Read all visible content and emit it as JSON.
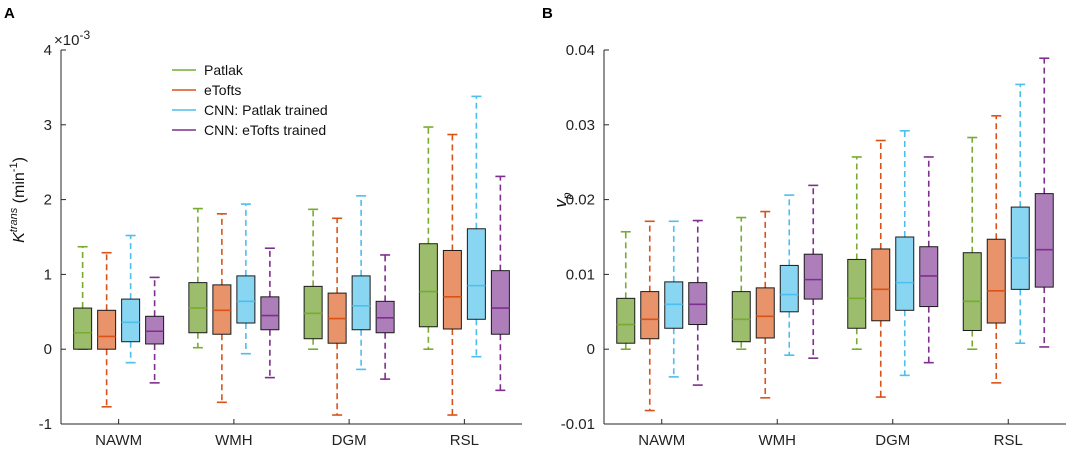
{
  "colors": {
    "patlak_fill": "#9bbd6c",
    "patlak_line": "#77ac30",
    "etofts_fill": "#e8936a",
    "etofts_line": "#d95319",
    "cnn_patlak_fill": "#89d6f3",
    "cnn_patlak_line": "#4dbeee",
    "cnn_etofts_fill": "#ad7eba",
    "cnn_etofts_line": "#7e2f8e",
    "axis": "#262626"
  },
  "chart_data": [
    {
      "type": "box",
      "panel_label": "A",
      "ylabel": {
        "main": "K",
        "sup": "trans",
        "mid": " (min",
        "sup2": "-1",
        "end": ")"
      },
      "exponent": {
        "base": "×10",
        "exp": "-3"
      },
      "ylim": [
        -1,
        4
      ],
      "yticks": [
        -1,
        0,
        1,
        2,
        3,
        4
      ],
      "ytick_labels": [
        "-1",
        "0",
        "1",
        "2",
        "3",
        "4"
      ],
      "categories": [
        "NAWM",
        "WMH",
        "DGM",
        "RSL"
      ],
      "legend": [
        "Patlak",
        "eTofts",
        "CNN: Patlak trained",
        "CNN: eTofts trained"
      ],
      "series": [
        {
          "name": "Patlak",
          "boxes": [
            {
              "whisker_low": 0.0,
              "q1": 0.0,
              "median": 0.22,
              "q3": 0.55,
              "whisker_high": 1.37
            },
            {
              "whisker_low": 0.02,
              "q1": 0.22,
              "median": 0.55,
              "q3": 0.89,
              "whisker_high": 1.88
            },
            {
              "whisker_low": 0.0,
              "q1": 0.14,
              "median": 0.48,
              "q3": 0.84,
              "whisker_high": 1.87
            },
            {
              "whisker_low": 0.0,
              "q1": 0.3,
              "median": 0.77,
              "q3": 1.41,
              "whisker_high": 2.97
            }
          ]
        },
        {
          "name": "eTofts",
          "boxes": [
            {
              "whisker_low": -0.77,
              "q1": 0.0,
              "median": 0.17,
              "q3": 0.52,
              "whisker_high": 1.29
            },
            {
              "whisker_low": -0.71,
              "q1": 0.2,
              "median": 0.52,
              "q3": 0.86,
              "whisker_high": 1.81
            },
            {
              "whisker_low": -0.88,
              "q1": 0.08,
              "median": 0.41,
              "q3": 0.75,
              "whisker_high": 1.75
            },
            {
              "whisker_low": -0.88,
              "q1": 0.27,
              "median": 0.7,
              "q3": 1.32,
              "whisker_high": 2.87
            }
          ]
        },
        {
          "name": "CNN: Patlak trained",
          "boxes": [
            {
              "whisker_low": -0.18,
              "q1": 0.1,
              "median": 0.36,
              "q3": 0.67,
              "whisker_high": 1.52
            },
            {
              "whisker_low": -0.06,
              "q1": 0.35,
              "median": 0.64,
              "q3": 0.98,
              "whisker_high": 1.94
            },
            {
              "whisker_low": -0.27,
              "q1": 0.26,
              "median": 0.58,
              "q3": 0.98,
              "whisker_high": 2.05
            },
            {
              "whisker_low": -0.1,
              "q1": 0.4,
              "median": 0.85,
              "q3": 1.61,
              "whisker_high": 3.38
            }
          ]
        },
        {
          "name": "CNN: eTofts trained",
          "boxes": [
            {
              "whisker_low": -0.45,
              "q1": 0.07,
              "median": 0.24,
              "q3": 0.44,
              "whisker_high": 0.96
            },
            {
              "whisker_low": -0.38,
              "q1": 0.26,
              "median": 0.45,
              "q3": 0.7,
              "whisker_high": 1.35
            },
            {
              "whisker_low": -0.4,
              "q1": 0.22,
              "median": 0.42,
              "q3": 0.64,
              "whisker_high": 1.26
            },
            {
              "whisker_low": -0.55,
              "q1": 0.2,
              "median": 0.55,
              "q3": 1.05,
              "whisker_high": 2.31
            }
          ]
        }
      ]
    },
    {
      "type": "box",
      "panel_label": "B",
      "ylabel": {
        "main": "v",
        "sub": "p"
      },
      "ylim": [
        -0.01,
        0.04
      ],
      "yticks": [
        -0.01,
        0,
        0.01,
        0.02,
        0.03,
        0.04
      ],
      "ytick_labels": [
        "-0.01",
        "0",
        "0.01",
        "0.02",
        "0.03",
        "0.04"
      ],
      "categories": [
        "NAWM",
        "WMH",
        "DGM",
        "RSL"
      ],
      "series": [
        {
          "name": "Patlak",
          "boxes": [
            {
              "whisker_low": 0.0,
              "q1": 0.0008,
              "median": 0.0033,
              "q3": 0.0068,
              "whisker_high": 0.0157
            },
            {
              "whisker_low": 0.0,
              "q1": 0.001,
              "median": 0.004,
              "q3": 0.0077,
              "whisker_high": 0.0176
            },
            {
              "whisker_low": 0.0,
              "q1": 0.0028,
              "median": 0.0068,
              "q3": 0.012,
              "whisker_high": 0.0257
            },
            {
              "whisker_low": 0.0,
              "q1": 0.0025,
              "median": 0.0064,
              "q3": 0.0129,
              "whisker_high": 0.0283
            }
          ]
        },
        {
          "name": "eTofts",
          "boxes": [
            {
              "whisker_low": -0.0082,
              "q1": 0.0014,
              "median": 0.004,
              "q3": 0.0077,
              "whisker_high": 0.0171
            },
            {
              "whisker_low": -0.0065,
              "q1": 0.0015,
              "median": 0.0044,
              "q3": 0.0082,
              "whisker_high": 0.0184
            },
            {
              "whisker_low": -0.0064,
              "q1": 0.0038,
              "median": 0.008,
              "q3": 0.0134,
              "whisker_high": 0.0279
            },
            {
              "whisker_low": -0.0045,
              "q1": 0.0035,
              "median": 0.0078,
              "q3": 0.0147,
              "whisker_high": 0.0312
            }
          ]
        },
        {
          "name": "CNN: Patlak trained",
          "boxes": [
            {
              "whisker_low": -0.0037,
              "q1": 0.0028,
              "median": 0.006,
              "q3": 0.009,
              "whisker_high": 0.0171
            },
            {
              "whisker_low": -0.0008,
              "q1": 0.005,
              "median": 0.0073,
              "q3": 0.0112,
              "whisker_high": 0.0206
            },
            {
              "whisker_low": -0.0035,
              "q1": 0.0052,
              "median": 0.0089,
              "q3": 0.015,
              "whisker_high": 0.0292
            },
            {
              "whisker_low": 0.0008,
              "q1": 0.008,
              "median": 0.0122,
              "q3": 0.019,
              "whisker_high": 0.0354
            }
          ]
        },
        {
          "name": "CNN: eTofts trained",
          "boxes": [
            {
              "whisker_low": -0.0048,
              "q1": 0.0033,
              "median": 0.006,
              "q3": 0.0089,
              "whisker_high": 0.0172
            },
            {
              "whisker_low": -0.0012,
              "q1": 0.0067,
              "median": 0.0093,
              "q3": 0.0127,
              "whisker_high": 0.0219
            },
            {
              "whisker_low": -0.0018,
              "q1": 0.0057,
              "median": 0.0098,
              "q3": 0.0137,
              "whisker_high": 0.0257
            },
            {
              "whisker_low": 0.0003,
              "q1": 0.0083,
              "median": 0.0133,
              "q3": 0.0208,
              "whisker_high": 0.0389
            }
          ]
        }
      ]
    }
  ]
}
